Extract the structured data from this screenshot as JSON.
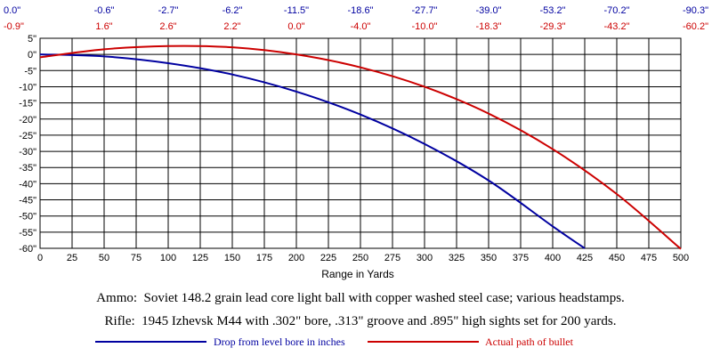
{
  "chart_data": {
    "type": "line",
    "xlabel": "Range in Yards",
    "x_ticks": [
      "0",
      "25",
      "50",
      "75",
      "100",
      "125",
      "150",
      "175",
      "200",
      "225",
      "250",
      "275",
      "300",
      "325",
      "350",
      "375",
      "400",
      "425",
      "450",
      "475",
      "500"
    ],
    "y_ticks": [
      "5\"",
      "0\"",
      "-5\"",
      "-10\"",
      "-15\"",
      "-20\"",
      "-25\"",
      "-30\"",
      "-35\"",
      "-40\"",
      "-45\"",
      "-50\"",
      "-55\"",
      "-60\""
    ],
    "xlim": [
      0,
      500
    ],
    "ylim": [
      -60,
      5
    ],
    "grid": true,
    "top_annotations": {
      "x": [
        0,
        50,
        100,
        150,
        200,
        250,
        300,
        350,
        400,
        450,
        500
      ],
      "drop_labels": [
        "0.0\"",
        "-0.6\"",
        "-2.7\"",
        "-6.2\"",
        "-11.5\"",
        "-18.6\"",
        "-27.7\"",
        "-39.0\"",
        "-53.2\"",
        "-70.2\"",
        "-90.3\""
      ],
      "path_labels": [
        "-0.9\"",
        "1.6\"",
        "2.6\"",
        "2.2\"",
        "0.0\"",
        "-4.0\"",
        "-10.0\"",
        "-18.3\"",
        "-29.3\"",
        "-43.2\"",
        "-60.2\""
      ]
    },
    "series": [
      {
        "name": "Drop from level bore in inches",
        "color": "#0000a0",
        "x": [
          0,
          50,
          100,
          150,
          200,
          250,
          300,
          350,
          400,
          425
        ],
        "y": [
          0.0,
          -0.6,
          -2.7,
          -6.2,
          -11.5,
          -18.6,
          -27.7,
          -39.0,
          -53.2,
          -60
        ]
      },
      {
        "name": "Actual path of bullet",
        "color": "#cc0000",
        "x": [
          0,
          50,
          100,
          150,
          200,
          250,
          300,
          350,
          400,
          450,
          500
        ],
        "y": [
          -0.9,
          1.6,
          2.6,
          2.2,
          0.0,
          -4.0,
          -10.0,
          -18.3,
          -29.3,
          -43.2,
          -60.2
        ]
      }
    ],
    "notes": [
      "Ammo:  Soviet 148.2 grain lead core light ball with copper washed steel case; various headstamps.",
      "Rifle:  1945 Izhevsk M44 with .302\" bore, .313\" groove and .895\" high sights set for 200 yards."
    ],
    "legend": [
      "Drop from level bore in inches",
      "Actual path of bullet"
    ]
  }
}
